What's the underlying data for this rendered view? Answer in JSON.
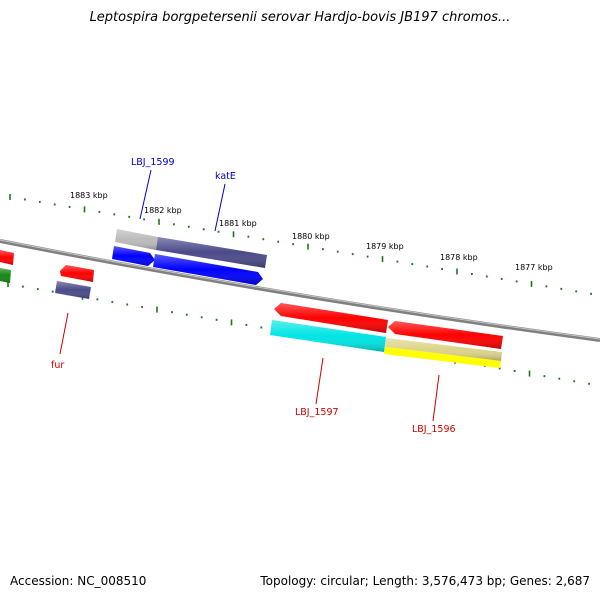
{
  "title": "Leptospira borgpetersenii serovar Hardjo-bovis JB197 chromos...",
  "footer": {
    "accession": "Accession: NC_008510",
    "stats": "Topology: circular; Length: 3,576,473 bp; Genes: 2,687"
  },
  "scale_labels": [
    "1883 kbp",
    "1882 kbp",
    "1881 kbp",
    "1880 kbp",
    "1879 kbp",
    "1878 kbp",
    "1877 kbp"
  ],
  "gene_labels": {
    "lbj1599": "LBJ_1599",
    "kate": "katE",
    "fur": "fur",
    "lbj1597": "LBJ_1597",
    "lbj1596": "LBJ_1596"
  },
  "colors": {
    "label_blue": "#0000cc",
    "label_red": "#cc0000",
    "tick_green": "#1a7a1a",
    "backbone": "#888888",
    "red_feature": "#ff0000",
    "blue_feature": "#0000ff",
    "navy_feature": "#4b4a8a",
    "gray_feature": "#bbbbbb",
    "cyan_feature": "#00e5e5",
    "yellow_feature": "#ffff00",
    "khaki_feature": "#ddd488",
    "green_feature": "#118811"
  }
}
